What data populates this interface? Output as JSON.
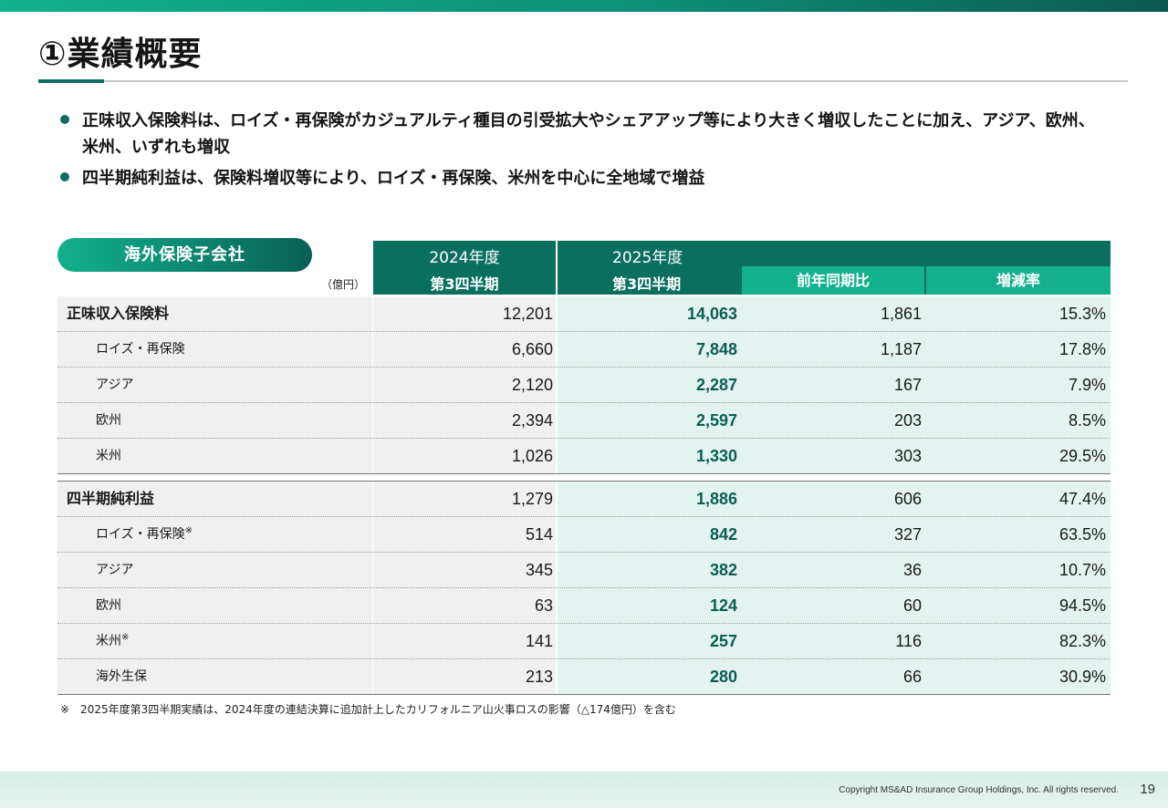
{
  "title": "①業績概要",
  "bullets": [
    "正味収入保険料は、ロイズ・再保険がカジュアルティ種目の引受拡大やシェアアップ等により大きく増収したことに加え、アジア、欧州、米州、いずれも増収",
    "四半期純利益は、保険料増収等により、ロイズ・再保険、米州を中心に全地域で増益"
  ],
  "table": {
    "segment_label": "海外保険子会社",
    "unit": "（億円）",
    "header": {
      "fy2024": "2024年度",
      "fy2024_q": "第3四半期",
      "fy2025": "2025年度",
      "fy2025_q": "第3四半期",
      "yoy": "前年同期比",
      "rate": "増減率"
    },
    "premiums": [
      {
        "label": "正味収入保険料",
        "note": "",
        "v2024": "12,201",
        "v2025": "14,063",
        "yoy": "1,861",
        "rate": "15.3%"
      },
      {
        "label": "ロイズ・再保険",
        "note": "",
        "v2024": "6,660",
        "v2025": "7,848",
        "yoy": "1,187",
        "rate": "17.8%"
      },
      {
        "label": "アジア",
        "note": "",
        "v2024": "2,120",
        "v2025": "2,287",
        "yoy": "167",
        "rate": "7.9%"
      },
      {
        "label": "欧州",
        "note": "",
        "v2024": "2,394",
        "v2025": "2,597",
        "yoy": "203",
        "rate": "8.5%"
      },
      {
        "label": "米州",
        "note": "",
        "v2024": "1,026",
        "v2025": "1,330",
        "yoy": "303",
        "rate": "29.5%"
      }
    ],
    "profit": [
      {
        "label": "四半期純利益",
        "note": "",
        "v2024": "1,279",
        "v2025": "1,886",
        "yoy": "606",
        "rate": "47.4%"
      },
      {
        "label": "ロイズ・再保険",
        "note": "※",
        "v2024": "514",
        "v2025": "842",
        "yoy": "327",
        "rate": "63.5%"
      },
      {
        "label": "アジア",
        "note": "",
        "v2024": "345",
        "v2025": "382",
        "yoy": "36",
        "rate": "10.7%"
      },
      {
        "label": "欧州",
        "note": "",
        "v2024": "63",
        "v2025": "124",
        "yoy": "60",
        "rate": "94.5%"
      },
      {
        "label": "米州",
        "note": "※",
        "v2024": "141",
        "v2025": "257",
        "yoy": "116",
        "rate": "82.3%"
      },
      {
        "label": "海外生保",
        "note": "",
        "v2024": "213",
        "v2025": "280",
        "yoy": "66",
        "rate": "30.9%"
      }
    ]
  },
  "footnote": "※　2025年度第3四半期実績は、2024年度の連結決算に追加計上したカリフォルニア山火事ロスの影響（△174億円）を含む",
  "footer": {
    "copyright": "Copyright MS&AD Insurance Group Holdings, Inc. All rights reserved.",
    "page": "19"
  },
  "colors": {
    "accent_dark": "#0b6f60",
    "accent_light": "#12b08c",
    "value_2025": "#0b5e52"
  }
}
